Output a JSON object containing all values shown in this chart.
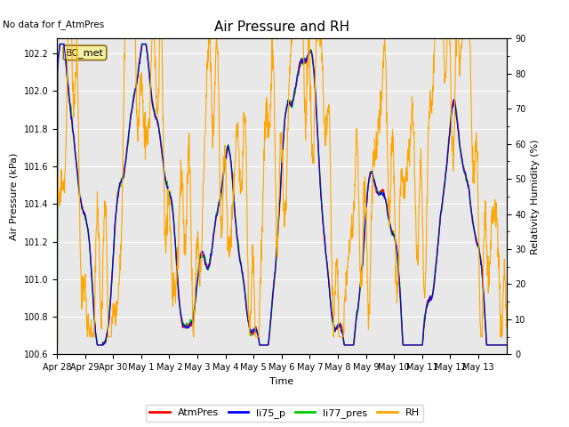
{
  "title": "Air Pressure and RH",
  "no_data_text": "No data for f_AtmPres",
  "bc_met_label": "BC_met",
  "xlabel": "Time",
  "ylabel_left": "Air Pressure (kPa)",
  "ylabel_right": "Relativity Humidity (%)",
  "ylim_left": [
    100.6,
    102.28
  ],
  "ylim_right": [
    0,
    90
  ],
  "yticks_left": [
    100.6,
    100.8,
    101.0,
    101.2,
    101.4,
    101.6,
    101.8,
    102.0,
    102.2
  ],
  "yticks_right": [
    0,
    10,
    20,
    30,
    40,
    50,
    60,
    70,
    80,
    90
  ],
  "xtick_labels": [
    "Apr 28",
    "Apr 29",
    "Apr 30",
    "May 1",
    "May 2",
    "May 3",
    "May 4",
    "May 5",
    "May 6",
    "May 7",
    "May 8",
    "May 9",
    "May 10",
    "May 11",
    "May 12",
    "May 13"
  ],
  "line_colors": {
    "AtmPres": "#ff0000",
    "li75_p": "#0000ff",
    "li77_pres": "#00cc00",
    "RH": "#ffa500"
  },
  "line_widths": {
    "AtmPres": 0.8,
    "li75_p": 0.8,
    "li77_pres": 1.2,
    "RH": 0.8
  },
  "bg_color": "#e8e8e8",
  "fig_bg": "#ffffff",
  "title_fontsize": 11,
  "axis_fontsize": 8,
  "tick_fontsize": 7,
  "legend_fontsize": 8
}
